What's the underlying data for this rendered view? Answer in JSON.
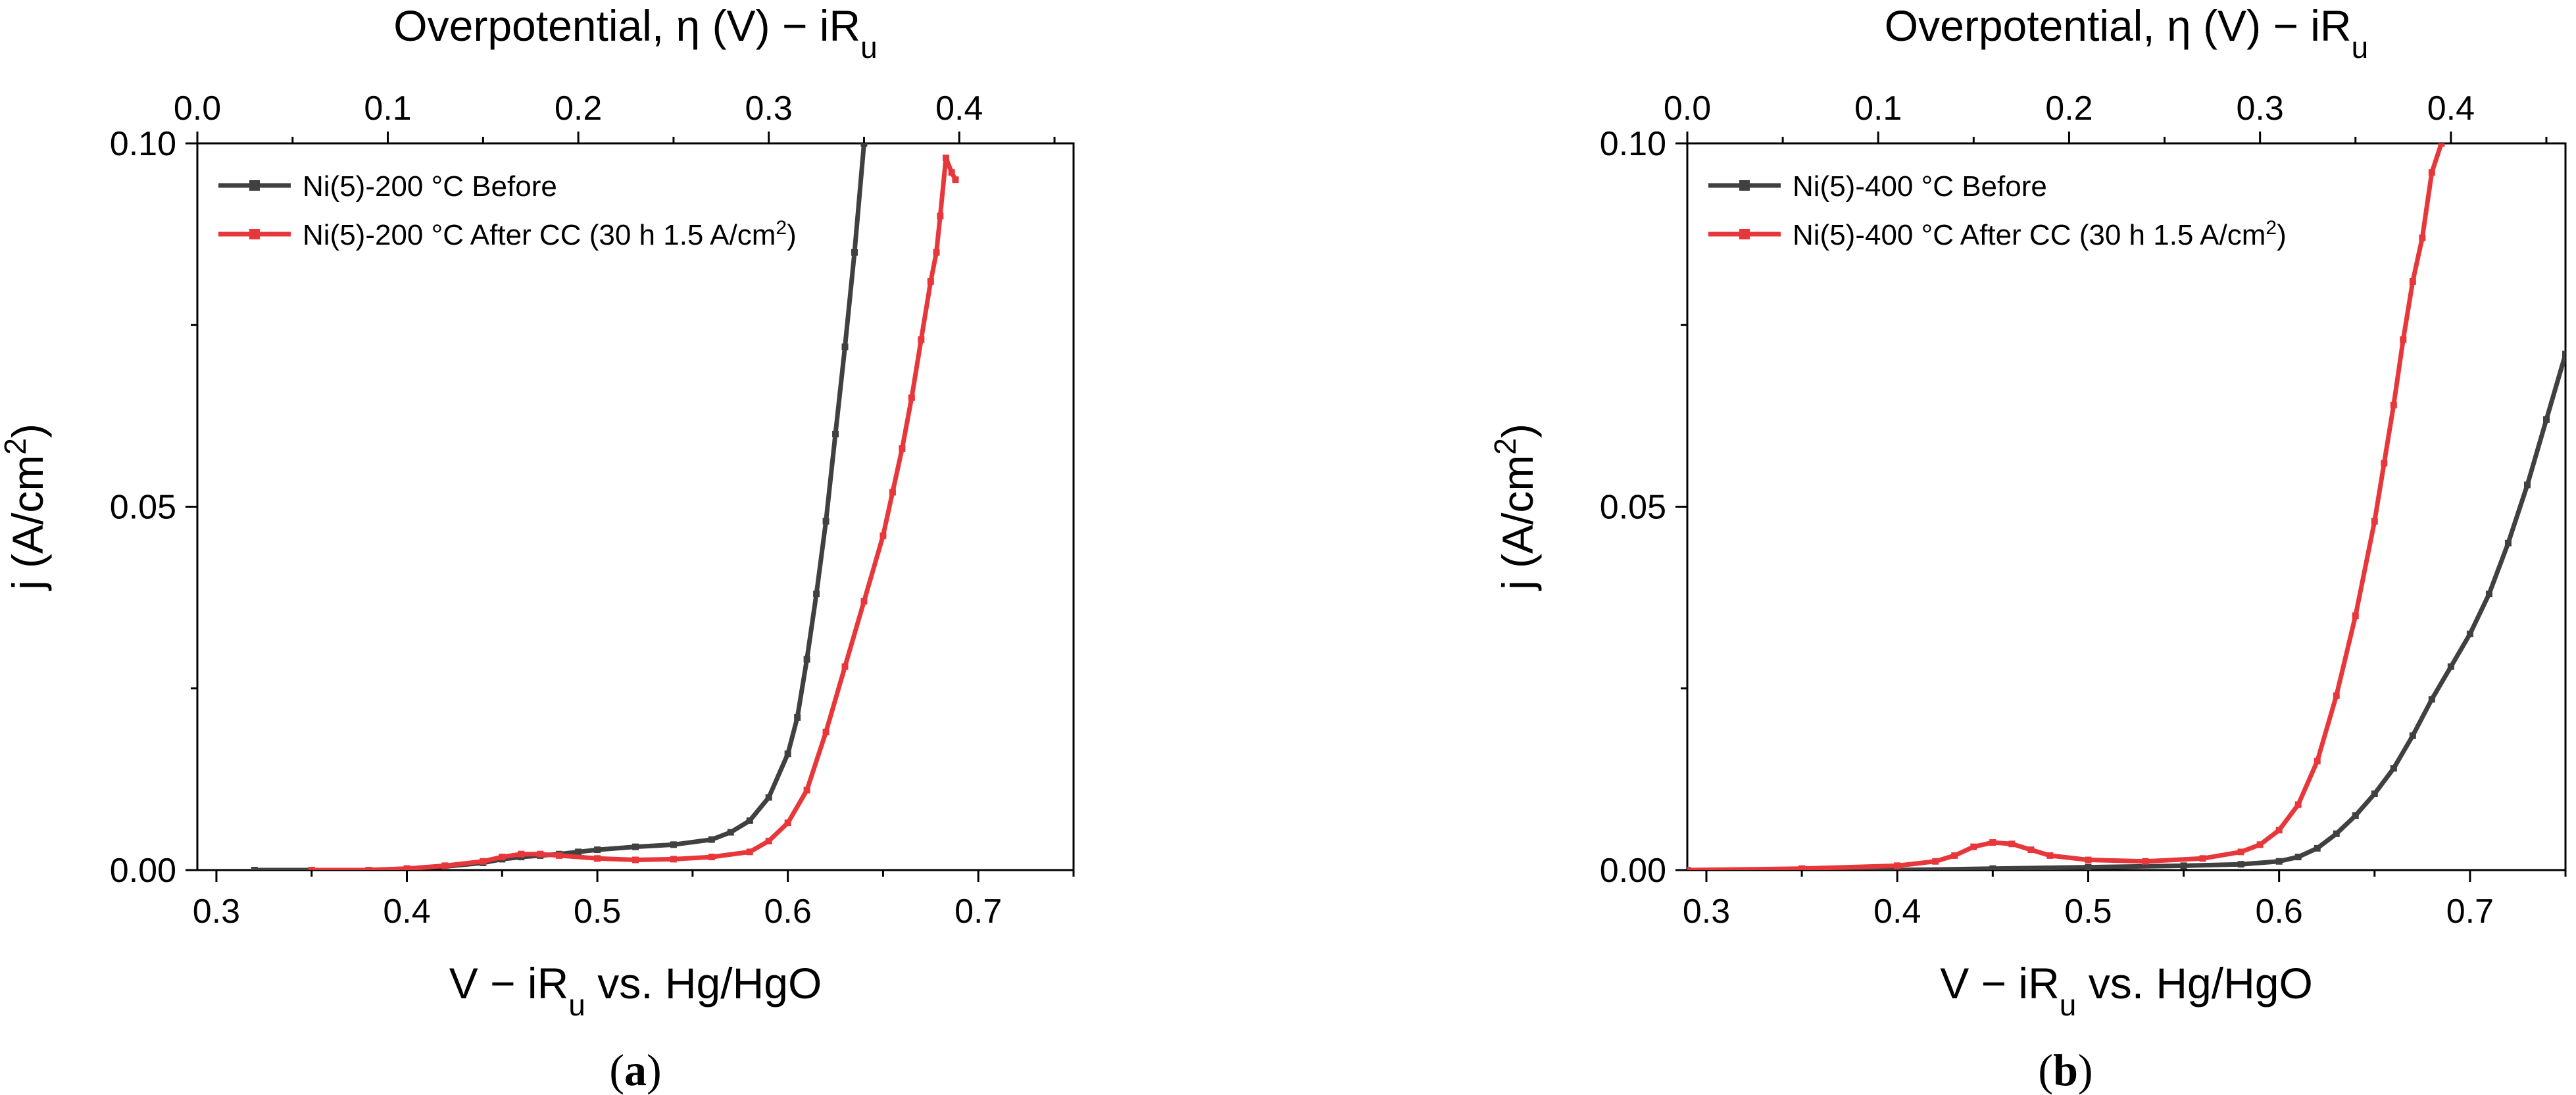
{
  "chart_data": [
    {
      "type": "line",
      "panel_label": "(a)",
      "panel_letter": "a",
      "xlabel": "V − iR",
      "xlabel_sub": "u",
      "xlabel_suffix": " vs. Hg/HgO",
      "ylabel": "j (A/cm",
      "ylabel_sup": "2",
      "ylabel_suffix": ")",
      "top_xlabel": "Overpotential, η (V) − iR",
      "top_xlabel_sub": "u",
      "xlim": [
        0.29,
        0.75
      ],
      "ylim": [
        0.0,
        0.1
      ],
      "top_xlim": [
        0.0,
        0.46
      ],
      "x_ticks": [
        "0.3",
        "0.4",
        "0.5",
        "0.6",
        "0.7"
      ],
      "y_ticks": [
        "0.00",
        "0.05",
        "0.10"
      ],
      "top_ticks": [
        "0.0",
        "0.1",
        "0.2",
        "0.3",
        "0.4"
      ],
      "legend_position": "top-left",
      "series": [
        {
          "name": "Ni(5)-200 °C Before",
          "legend_text": "Ni(5)-200 °C Before",
          "color": "#404040",
          "x": [
            0.32,
            0.35,
            0.38,
            0.4,
            0.42,
            0.44,
            0.45,
            0.46,
            0.47,
            0.48,
            0.49,
            0.5,
            0.52,
            0.54,
            0.56,
            0.57,
            0.58,
            0.59,
            0.6,
            0.605,
            0.61,
            0.615,
            0.62,
            0.625,
            0.63,
            0.635,
            0.64
          ],
          "y": [
            0.0,
            0.0,
            0.0,
            0.0002,
            0.0005,
            0.001,
            0.0015,
            0.0018,
            0.002,
            0.0022,
            0.0025,
            0.0028,
            0.0032,
            0.0035,
            0.0042,
            0.0052,
            0.0068,
            0.01,
            0.016,
            0.021,
            0.029,
            0.038,
            0.048,
            0.06,
            0.072,
            0.085,
            0.1
          ]
        },
        {
          "name": "Ni(5)-200 °C After CC (30 h 1.5 A/cm2)",
          "legend_text": "Ni(5)-200 °C After CC (30 h 1.5 A/cm",
          "legend_sup": "2",
          "legend_suffix": ")",
          "color": "#e8373a",
          "x": [
            0.35,
            0.38,
            0.4,
            0.42,
            0.44,
            0.45,
            0.46,
            0.47,
            0.48,
            0.5,
            0.52,
            0.54,
            0.56,
            0.58,
            0.59,
            0.6,
            0.61,
            0.62,
            0.63,
            0.64,
            0.65,
            0.655,
            0.66,
            0.665,
            0.67,
            0.675,
            0.678,
            0.68,
            0.683,
            0.686,
            0.688
          ],
          "y": [
            0.0,
            0.0,
            0.0002,
            0.0006,
            0.0012,
            0.0018,
            0.0022,
            0.0022,
            0.002,
            0.0016,
            0.0014,
            0.0015,
            0.0018,
            0.0025,
            0.004,
            0.0065,
            0.011,
            0.019,
            0.028,
            0.037,
            0.046,
            0.052,
            0.058,
            0.065,
            0.073,
            0.081,
            0.085,
            0.09,
            0.098,
            0.096,
            0.095
          ]
        }
      ]
    },
    {
      "type": "line",
      "panel_label": "(b)",
      "panel_letter": "b",
      "xlabel": "V − iR",
      "xlabel_sub": "u",
      "xlabel_suffix": " vs. Hg/HgO",
      "ylabel": "j (A/cm",
      "ylabel_sup": "2",
      "ylabel_suffix": ")",
      "top_xlabel": "Overpotential, η (V) − iR",
      "top_xlabel_sub": "u",
      "xlim": [
        0.29,
        0.75
      ],
      "ylim": [
        0.0,
        0.1
      ],
      "top_xlim": [
        0.0,
        0.46
      ],
      "x_ticks": [
        "0.3",
        "0.4",
        "0.5",
        "0.6",
        "0.7"
      ],
      "y_ticks": [
        "0.00",
        "0.05",
        "0.10"
      ],
      "top_ticks": [
        "0.0",
        "0.1",
        "0.2",
        "0.3",
        "0.4"
      ],
      "legend_position": "top-left",
      "series": [
        {
          "name": "Ni(5)-400 °C Before",
          "legend_text": "Ni(5)-400 °C Before",
          "color": "#404040",
          "x": [
            0.29,
            0.35,
            0.4,
            0.45,
            0.5,
            0.55,
            0.58,
            0.6,
            0.61,
            0.62,
            0.63,
            0.64,
            0.65,
            0.66,
            0.67,
            0.68,
            0.69,
            0.7,
            0.71,
            0.72,
            0.73,
            0.74,
            0.75
          ],
          "y": [
            0.0,
            0.0,
            0.0,
            0.0002,
            0.0004,
            0.0006,
            0.0008,
            0.0012,
            0.0018,
            0.003,
            0.005,
            0.0075,
            0.0105,
            0.014,
            0.0185,
            0.0235,
            0.028,
            0.0325,
            0.038,
            0.045,
            0.053,
            0.062,
            0.071
          ]
        },
        {
          "name": "Ni(5)-400 °C After CC (30 h 1.5 A/cm2)",
          "legend_text": "Ni(5)-400 °C After CC (30 h 1.5 A/cm",
          "legend_sup": "2",
          "legend_suffix": ")",
          "color": "#e8373a",
          "x": [
            0.29,
            0.35,
            0.4,
            0.42,
            0.43,
            0.44,
            0.45,
            0.46,
            0.47,
            0.48,
            0.5,
            0.53,
            0.56,
            0.58,
            0.59,
            0.6,
            0.61,
            0.62,
            0.63,
            0.64,
            0.65,
            0.655,
            0.66,
            0.665,
            0.67,
            0.675,
            0.68,
            0.685
          ],
          "y": [
            0.0,
            0.0002,
            0.0006,
            0.0012,
            0.002,
            0.0032,
            0.0038,
            0.0036,
            0.0028,
            0.002,
            0.0014,
            0.0012,
            0.0016,
            0.0025,
            0.0035,
            0.0055,
            0.009,
            0.015,
            0.024,
            0.035,
            0.048,
            0.056,
            0.064,
            0.073,
            0.081,
            0.087,
            0.096,
            0.1
          ]
        }
      ]
    }
  ]
}
